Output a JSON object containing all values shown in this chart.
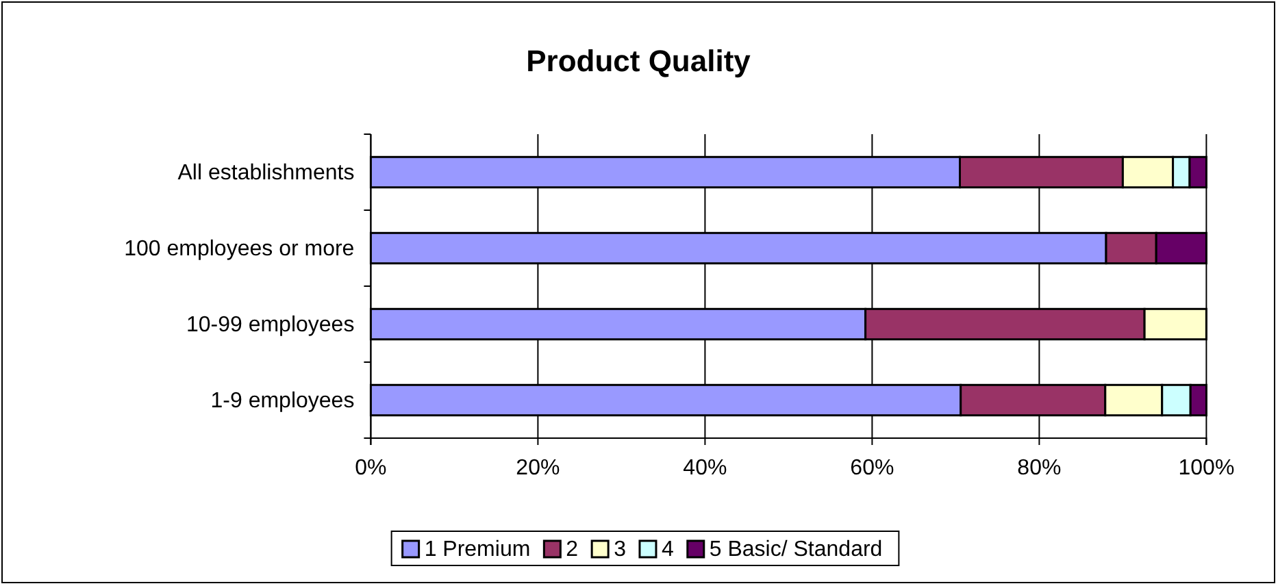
{
  "chart_data": {
    "type": "bar",
    "title": "Product Quality",
    "orientation": "horizontal",
    "stacked": true,
    "categories": [
      "All establishments",
      "100 employees or more",
      "10-99 employees",
      "1-9 employees"
    ],
    "series": [
      {
        "name": "1 Premium",
        "color": "#9999ff",
        "values": [
          70.5,
          88,
          59.2,
          70.6
        ]
      },
      {
        "name": "2",
        "color": "#993366",
        "values": [
          19.5,
          6,
          33.4,
          17.3
        ]
      },
      {
        "name": "3",
        "color": "#ffffcc",
        "values": [
          6,
          0,
          7.4,
          6.8
        ]
      },
      {
        "name": "4",
        "color": "#ccffff",
        "values": [
          2,
          0,
          0,
          3.4
        ]
      },
      {
        "name": "5 Basic/ Standard",
        "color": "#660066",
        "values": [
          2,
          6,
          0,
          1.9
        ]
      }
    ],
    "xlim": [
      0,
      100
    ],
    "xticks": [
      {
        "value": 0,
        "label": "0%"
      },
      {
        "value": 20,
        "label": "20%"
      },
      {
        "value": 40,
        "label": "40%"
      },
      {
        "value": 60,
        "label": "60%"
      },
      {
        "value": 80,
        "label": "80%"
      },
      {
        "value": 100,
        "label": "100%"
      }
    ],
    "grid": "x",
    "legend": "bottom"
  }
}
